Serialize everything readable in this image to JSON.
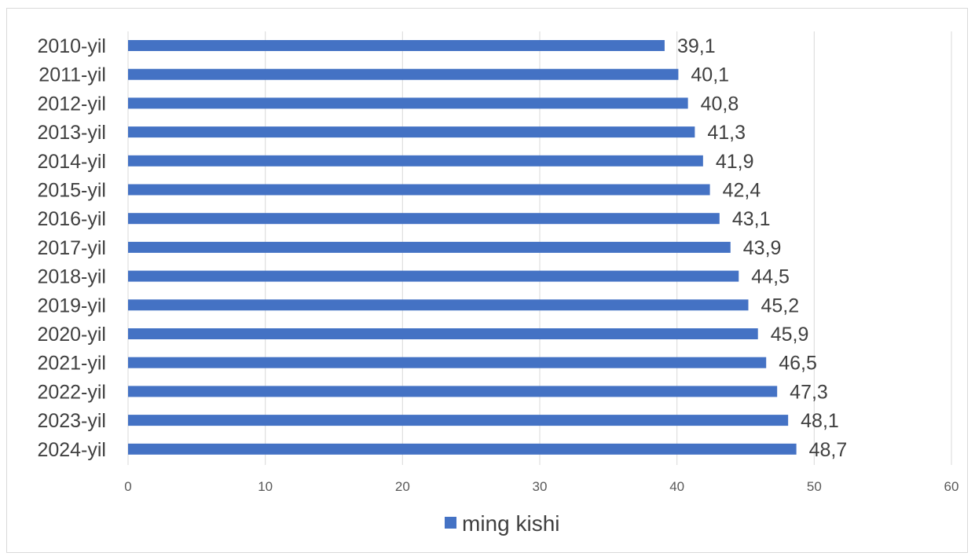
{
  "chart_data": {
    "type": "bar",
    "orientation": "horizontal",
    "categories": [
      "2010-yil",
      "2011-yil",
      "2012-yil",
      "2013-yil",
      "2014-yil",
      "2015-yil",
      "2016-yil",
      "2017-yil",
      "2018-yil",
      "2019-yil",
      "2020-yil",
      "2021-yil",
      "2022-yil",
      "2023-yil",
      "2024-yil"
    ],
    "value_labels": [
      "39,1",
      "40,1",
      "40,8",
      "41,3",
      "41,9",
      "42,4",
      "43,1",
      "43,9",
      "44,5",
      "45,2",
      "45,9",
      "46,5",
      "47,3",
      "48,1",
      "48,7"
    ],
    "series": [
      {
        "name": "ming kishi",
        "color": "#4472c4",
        "values": [
          39.1,
          40.1,
          40.8,
          41.3,
          41.9,
          42.4,
          43.1,
          43.9,
          44.5,
          45.2,
          45.9,
          46.5,
          47.3,
          48.1,
          48.7
        ]
      }
    ],
    "xlim": [
      0,
      60
    ],
    "xticks": [
      "0",
      "10",
      "20",
      "30",
      "40",
      "50",
      "60"
    ],
    "grid": true,
    "legend_position": "bottom",
    "title": "",
    "xlabel": "",
    "ylabel": ""
  }
}
